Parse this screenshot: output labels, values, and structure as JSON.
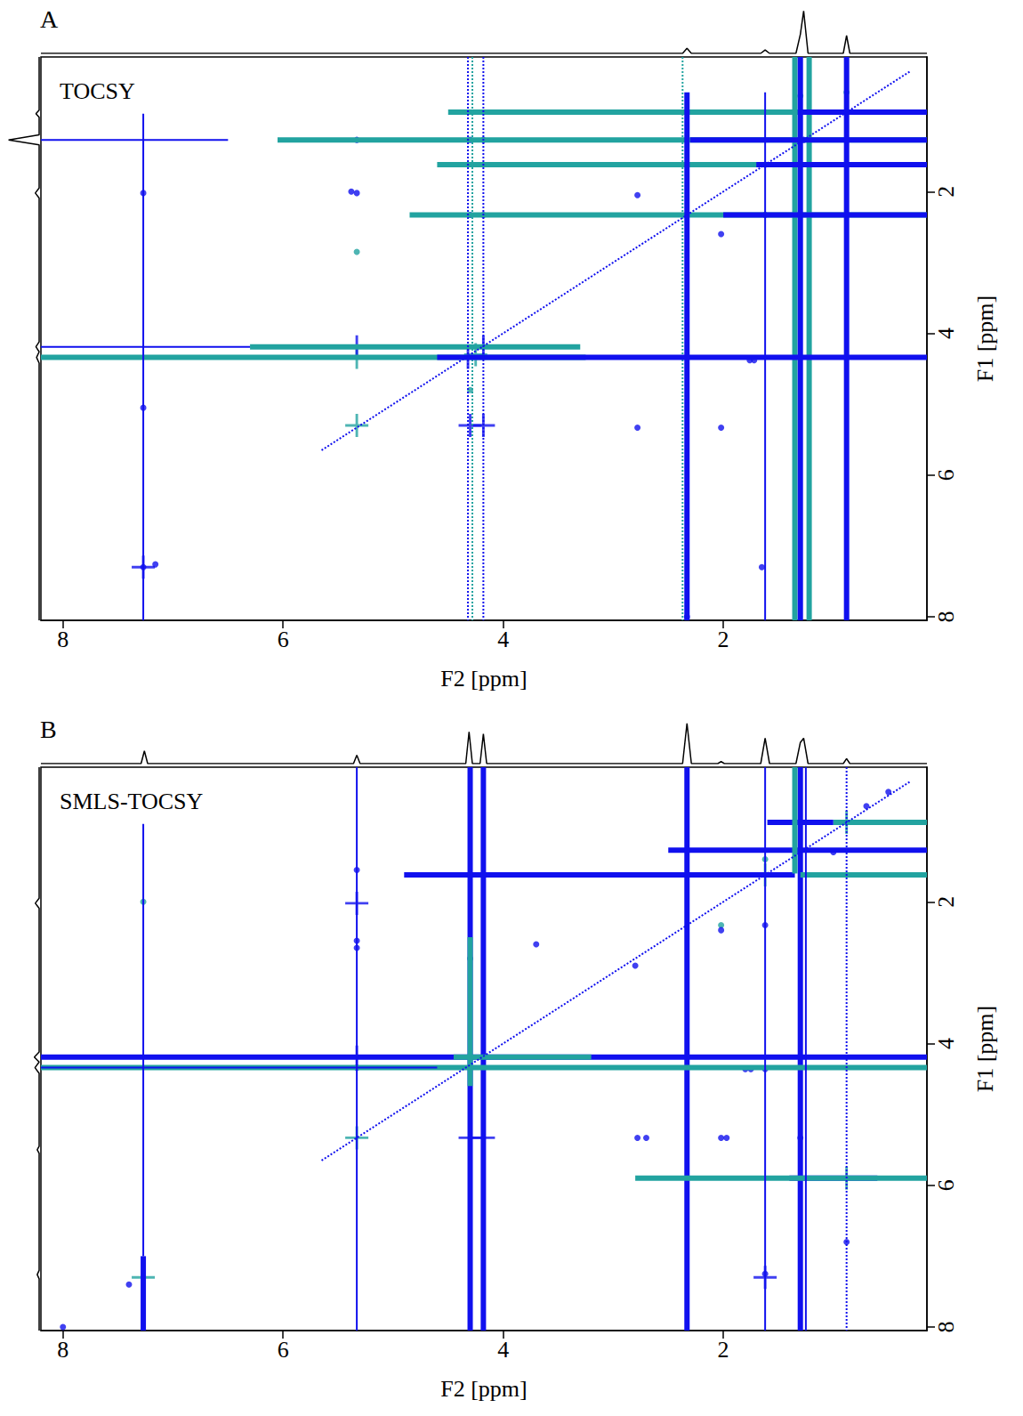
{
  "chart_data": [
    {
      "type": "scatter",
      "panel": "A",
      "title": "TOCSY",
      "xlabel": "F2 [ppm]",
      "ylabel": "F1 [ppm]",
      "xlim": [
        8.2,
        0.15
      ],
      "ylim": [
        8.05,
        0.1
      ],
      "xticks": [
        8,
        6,
        4,
        2
      ],
      "yticks": [
        2,
        4,
        6,
        8
      ],
      "grid": false,
      "top_trace": {
        "x": [
          8.2,
          2.37,
          2.33,
          2.29,
          1.66,
          1.62,
          1.58,
          1.34,
          1.3,
          1.27,
          1.23,
          0.91,
          0.88,
          0.85,
          0.15
        ],
        "y": [
          0,
          0,
          0.12,
          0,
          0,
          0.08,
          0,
          0,
          0.45,
          1.0,
          0,
          0,
          0.42,
          0,
          0
        ],
        "ylim": [
          0,
          1.05
        ]
      },
      "left_trace": {
        "x": [
          0,
          0,
          0.1,
          0,
          0,
          0.95,
          0,
          0,
          0.12,
          0,
          0,
          0.1,
          0,
          0.08,
          0,
          0
        ],
        "y": [
          0.1,
          0.85,
          0.9,
          0.95,
          1.2,
          1.27,
          1.34,
          1.95,
          2.02,
          2.09,
          4.12,
          4.19,
          4.26,
          4.34,
          4.42,
          8.05
        ],
        "xlim": [
          1.05,
          0
        ]
      },
      "series": [
        {
          "type": "line",
          "color": "#22a3a0",
          "line_style": "heavy",
          "segments": [
            [
              4.5,
              0.88,
              0.15,
              0.88
            ],
            [
              6.05,
              1.27,
              0.15,
              1.27
            ],
            [
              4.6,
              1.62,
              0.15,
              1.62
            ],
            [
              4.85,
              2.33,
              0.15,
              2.33
            ],
            [
              8.2,
              4.34,
              3.25,
              4.34
            ],
            [
              6.3,
              4.19,
              3.3,
              4.19
            ],
            [
              1.35,
              0.1,
              1.35,
              8.05
            ],
            [
              1.22,
              0.1,
              1.22,
              8.05
            ]
          ]
        },
        {
          "type": "line",
          "color": "#22a3a0",
          "line_style": "dotted",
          "segments": [
            [
              2.37,
              0.1,
              2.37,
              8.05
            ],
            [
              4.28,
              0.1,
              4.28,
              8.05
            ]
          ]
        },
        {
          "type": "line",
          "color": "#1010ee",
          "line_style": "heavy",
          "segments": [
            [
              1.3,
              0.1,
              1.3,
              8.05
            ],
            [
              0.88,
              0.1,
              0.88,
              8.05
            ],
            [
              2.33,
              0.6,
              2.33,
              8.05
            ],
            [
              1.3,
              0.88,
              0.15,
              0.88
            ],
            [
              2.3,
              1.27,
              0.15,
              1.27
            ],
            [
              1.7,
              1.62,
              0.15,
              1.62
            ],
            [
              2.0,
              2.33,
              0.15,
              2.33
            ],
            [
              4.6,
              4.34,
              0.15,
              4.34
            ]
          ]
        },
        {
          "type": "line",
          "color": "#1010ee",
          "line_style": "solid",
          "segments": [
            [
              8.2,
              1.27,
              6.5,
              1.27
            ],
            [
              7.27,
              0.9,
              7.27,
              8.05
            ],
            [
              1.62,
              0.6,
              1.62,
              8.05
            ],
            [
              8.2,
              4.19,
              6.3,
              4.19
            ]
          ]
        },
        {
          "type": "line",
          "color": "#1010ee",
          "line_style": "dotted",
          "segments": [
            [
              4.32,
              0.1,
              4.32,
              8.05
            ],
            [
              4.18,
              0.1,
              4.18,
              8.05
            ],
            [
              5.65,
              5.65,
              0.3,
              0.3
            ]
          ]
        },
        {
          "type": "scatter",
          "color": "#22a3a0",
          "marker": "cross",
          "x": [
            5.33,
            5.33,
            4.25
          ],
          "y": [
            5.3,
            4.34,
            4.3
          ]
        },
        {
          "type": "scatter",
          "color": "#1010ee",
          "marker": "cross",
          "x": [
            4.32,
            4.18,
            5.33,
            4.3,
            4.18,
            7.27
          ],
          "y": [
            4.34,
            4.19,
            4.19,
            5.3,
            5.3,
            7.3
          ]
        },
        {
          "type": "scatter",
          "color": "#22a3a0",
          "marker": "point",
          "x": [
            5.33,
            4.3,
            1.3,
            0.88
          ],
          "y": [
            2.85,
            4.8,
            0.65,
            0.6
          ]
        },
        {
          "type": "scatter",
          "color": "#1010ee",
          "marker": "point",
          "x": [
            7.27,
            7.16,
            7.27,
            7.27,
            5.33,
            5.33,
            5.38,
            4.3,
            4.18,
            4.3,
            4.18,
            2.78,
            2.02,
            2.78,
            1.76,
            1.72,
            2.33,
            1.62,
            2.33,
            1.62,
            1.65,
            2.33,
            0.88,
            1.27,
            2.02
          ],
          "y": [
            7.3,
            7.26,
            2.02,
            5.05,
            1.27,
            2.02,
            2.0,
            1.27,
            1.27,
            2.33,
            2.33,
            5.33,
            5.33,
            2.05,
            4.38,
            4.38,
            2.33,
            2.33,
            1.62,
            1.62,
            7.3,
            8.0,
            0.88,
            1.27,
            2.6
          ]
        }
      ]
    },
    {
      "type": "scatter",
      "panel": "B",
      "title": "SMLS-TOCSY",
      "xlabel": "F2 [ppm]",
      "ylabel": "F1 [ppm]",
      "xlim": [
        8.2,
        0.15
      ],
      "ylim": [
        8.05,
        0.1
      ],
      "xticks": [
        8,
        6,
        4,
        2
      ],
      "yticks": [
        2,
        4,
        6,
        8
      ],
      "grid": false,
      "top_trace": {
        "x": [
          8.2,
          7.29,
          7.26,
          7.23,
          5.36,
          5.33,
          5.3,
          4.34,
          4.31,
          4.28,
          4.21,
          4.18,
          4.15,
          2.37,
          2.33,
          2.29,
          2.05,
          2.02,
          1.99,
          1.66,
          1.62,
          1.58,
          1.34,
          1.3,
          1.27,
          1.23,
          0.91,
          0.88,
          0.85,
          0.15
        ],
        "y": [
          0,
          0,
          0.3,
          0,
          0,
          0.2,
          0,
          0,
          0.75,
          0,
          0,
          0.7,
          0,
          0,
          0.95,
          0,
          0,
          0.05,
          0,
          0,
          0.6,
          0,
          0,
          0.5,
          0.6,
          0,
          0,
          0.12,
          0,
          0
        ],
        "ylim": [
          0,
          1.05
        ]
      },
      "left_trace": {
        "x": [
          0,
          0,
          0.12,
          0,
          0,
          0.15,
          0,
          0.13,
          0,
          0,
          0.06,
          0,
          0,
          0.06,
          0,
          0
        ],
        "y": [
          0.1,
          1.95,
          2.02,
          2.09,
          4.12,
          4.19,
          4.26,
          4.34,
          4.42,
          5.45,
          5.5,
          5.55,
          7.2,
          7.26,
          7.32,
          8.05
        ],
        "xlim": [
          1.05,
          0
        ]
      },
      "series": [
        {
          "type": "line",
          "color": "#1010ee",
          "line_style": "heavy",
          "segments": [
            [
              8.2,
              4.19,
              0.15,
              4.19
            ],
            [
              4.9,
              1.62,
              1.35,
              1.62
            ],
            [
              2.5,
              1.27,
              0.15,
              1.27
            ],
            [
              1.6,
              0.88,
              1.0,
              0.88
            ],
            [
              1.4,
              5.9,
              0.6,
              5.9
            ],
            [
              7.27,
              7.0,
              7.27,
              8.05
            ],
            [
              4.3,
              0.1,
              4.3,
              8.05
            ],
            [
              4.18,
              0.1,
              4.18,
              8.05
            ],
            [
              2.33,
              0.1,
              2.33,
              8.05
            ],
            [
              1.3,
              0.1,
              1.3,
              8.05
            ]
          ]
        },
        {
          "type": "line",
          "color": "#22a3a0",
          "line_style": "heavy",
          "segments": [
            [
              8.2,
              4.34,
              0.15,
              4.34
            ],
            [
              2.8,
              5.9,
              0.15,
              5.9
            ],
            [
              1.3,
              1.62,
              0.15,
              1.62
            ],
            [
              1.0,
              0.88,
              0.15,
              0.88
            ],
            [
              4.45,
              4.19,
              3.2,
              4.19
            ],
            [
              4.3,
              2.5,
              4.3,
              4.6
            ],
            [
              1.35,
              0.1,
              1.35,
              1.6
            ]
          ]
        },
        {
          "type": "line",
          "color": "#1010ee",
          "line_style": "solid",
          "segments": [
            [
              7.27,
              0.9,
              7.27,
              7.0
            ],
            [
              5.33,
              0.1,
              5.33,
              8.05
            ],
            [
              1.62,
              0.1,
              1.62,
              8.05
            ],
            [
              1.25,
              0.1,
              1.25,
              8.05
            ],
            [
              8.2,
              4.34,
              4.6,
              4.34
            ]
          ]
        },
        {
          "type": "line",
          "color": "#1010ee",
          "line_style": "dotted",
          "segments": [
            [
              0.88,
              0.1,
              0.88,
              8.05
            ],
            [
              5.65,
              5.65,
              0.3,
              0.3
            ]
          ]
        },
        {
          "type": "scatter",
          "color": "#22a3a0",
          "marker": "cross",
          "x": [
            7.27,
            5.33,
            4.3,
            0.88,
            1.3,
            1.62,
            1.3,
            0.88
          ],
          "y": [
            7.3,
            5.33,
            4.34,
            5.9,
            5.9,
            1.62,
            1.27,
            0.88
          ]
        },
        {
          "type": "scatter",
          "color": "#1010ee",
          "marker": "cross",
          "x": [
            5.33,
            5.33,
            4.18,
            4.3,
            4.18,
            4.3,
            1.62
          ],
          "y": [
            2.02,
            4.19,
            5.33,
            5.33,
            4.19,
            4.34,
            7.3
          ]
        },
        {
          "type": "scatter",
          "color": "#22a3a0",
          "marker": "point",
          "x": [
            7.27,
            2.02,
            1.62,
            4.3
          ],
          "y": [
            2.0,
            2.33,
            1.4,
            2.8
          ]
        },
        {
          "type": "scatter",
          "color": "#1010ee",
          "marker": "point",
          "x": [
            5.33,
            5.33,
            5.33,
            5.33,
            2.78,
            2.7,
            2.02,
            1.97,
            2.33,
            1.62,
            2.02,
            1.8,
            1.75,
            1.62,
            1.62,
            1.3,
            0.88,
            3.7,
            2.8,
            8.0,
            7.4,
            1.0,
            0.7,
            0.5
          ],
          "y": [
            1.55,
            2.55,
            2.65,
            4.34,
            5.33,
            5.33,
            5.33,
            5.33,
            1.62,
            2.33,
            2.4,
            4.36,
            4.36,
            4.36,
            7.25,
            5.33,
            6.8,
            2.6,
            2.9,
            8.0,
            7.4,
            1.3,
            0.65,
            0.45
          ]
        }
      ]
    }
  ]
}
